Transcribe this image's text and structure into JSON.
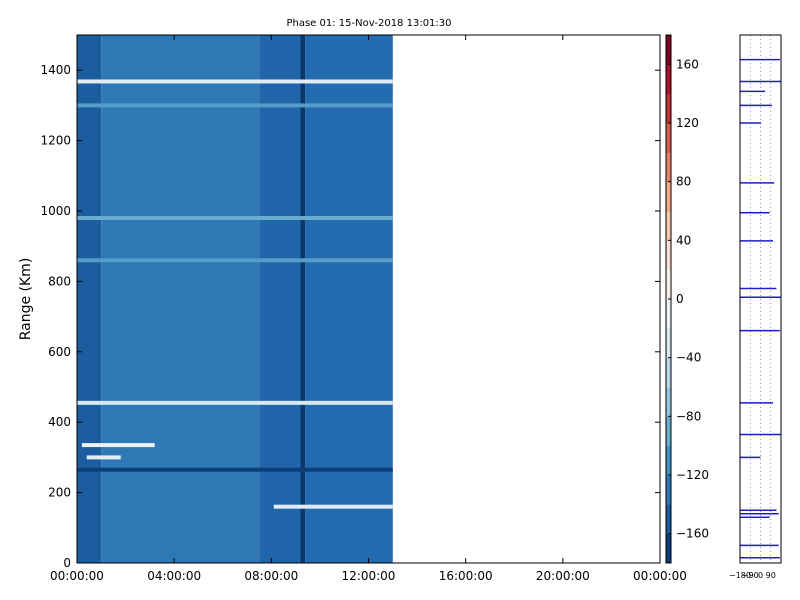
{
  "chart_data": {
    "type": "heatmap",
    "title": "Phase 01: 15-Nov-2018 13:01:30",
    "ylabel": "Range (Km)",
    "xlabel": "",
    "x_tick_labels": [
      "00:00:00",
      "04:00:00",
      "08:00:00",
      "12:00:00",
      "16:00:00",
      "20:00:00",
      "00:00:00"
    ],
    "xlim_hours": [
      0,
      24
    ],
    "data_end_hour": 13.0,
    "y_ticks": [
      0,
      200,
      400,
      600,
      800,
      1000,
      1200,
      1400
    ],
    "ylim": [
      0,
      1500
    ],
    "colorbar": {
      "colormap": "RdBu_r",
      "vmin": -180,
      "vmax": 180,
      "ticks": [
        160,
        120,
        80,
        40,
        0,
        -40,
        -80,
        -120,
        -160
      ]
    },
    "heatmap_background": [
      {
        "from_hour": 0.0,
        "to_hour": 1.0,
        "value": -150
      },
      {
        "from_hour": 1.0,
        "to_hour": 7.5,
        "value": -130
      },
      {
        "from_hour": 7.5,
        "to_hour": 9.2,
        "value": -145
      },
      {
        "from_hour": 9.2,
        "to_hour": 9.4,
        "value": -175
      },
      {
        "from_hour": 9.4,
        "to_hour": 13.0,
        "value": -140
      }
    ],
    "heatmap_bands": [
      {
        "range_km": 1368,
        "from_hour": 0.0,
        "to_hour": 13.0,
        "value": -20
      },
      {
        "range_km": 1300,
        "from_hour": 0.0,
        "to_hour": 13.0,
        "value": -100
      },
      {
        "range_km": 980,
        "from_hour": 0.0,
        "to_hour": 13.0,
        "value": -90
      },
      {
        "range_km": 860,
        "from_hour": 0.0,
        "to_hour": 13.0,
        "value": -100
      },
      {
        "range_km": 455,
        "from_hour": 0.0,
        "to_hour": 13.0,
        "value": -30
      },
      {
        "range_km": 335,
        "from_hour": 0.2,
        "to_hour": 3.2,
        "value": -10
      },
      {
        "range_km": 300,
        "from_hour": 0.4,
        "to_hour": 1.8,
        "value": -20
      },
      {
        "range_km": 265,
        "from_hour": 0.0,
        "to_hour": 13.0,
        "value": -170
      },
      {
        "range_km": 160,
        "from_hour": 8.1,
        "to_hour": 13.0,
        "value": -20
      }
    ],
    "right_profile": {
      "x_tick_labels": [
        "−180",
        "−90",
        "0",
        "90"
      ],
      "xlim": [
        -180,
        180
      ],
      "spikes": [
        {
          "range_km": 1430,
          "value": 170
        },
        {
          "range_km": 1368,
          "value": 180
        },
        {
          "range_km": 1340,
          "value": 40
        },
        {
          "range_km": 1300,
          "value": 100
        },
        {
          "range_km": 1250,
          "value": 5
        },
        {
          "range_km": 1080,
          "value": 120
        },
        {
          "range_km": 995,
          "value": 80
        },
        {
          "range_km": 915,
          "value": 110
        },
        {
          "range_km": 780,
          "value": 140
        },
        {
          "range_km": 755,
          "value": 180
        },
        {
          "range_km": 660,
          "value": 170
        },
        {
          "range_km": 455,
          "value": 110
        },
        {
          "range_km": 365,
          "value": 180
        },
        {
          "range_km": 300,
          "value": 0
        },
        {
          "range_km": 150,
          "value": 140
        },
        {
          "range_km": 140,
          "value": 160
        },
        {
          "range_km": 130,
          "value": 80
        },
        {
          "range_km": 50,
          "value": 160
        },
        {
          "range_km": 15,
          "value": 170
        }
      ]
    }
  }
}
